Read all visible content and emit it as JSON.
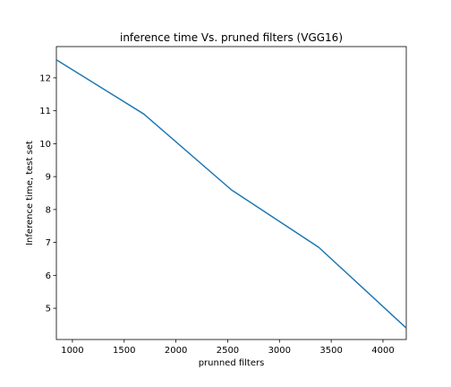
{
  "chart_data": {
    "type": "line",
    "title": "inference time Vs. pruned filters (VGG16)",
    "xlabel": "prunned filters",
    "ylabel": "Inference time, test set",
    "xlim": [
      845,
      4225
    ],
    "ylim": [
      4.05,
      12.95
    ],
    "xticks": [
      1000,
      1500,
      2000,
      2500,
      3000,
      3500,
      4000
    ],
    "yticks": [
      5,
      6,
      7,
      8,
      9,
      10,
      11,
      12
    ],
    "grid": false,
    "series": [
      {
        "name": "",
        "color": "#1f77b4",
        "x": [
          845,
          1690,
          2535,
          3380,
          4225
        ],
        "y": [
          12.55,
          10.9,
          8.6,
          6.85,
          4.4
        ]
      }
    ]
  }
}
